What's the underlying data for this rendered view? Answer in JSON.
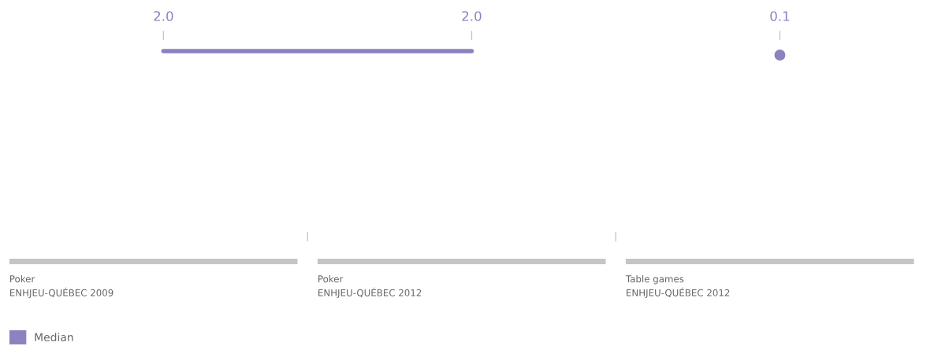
{
  "chart_data": {
    "type": "other",
    "categories": [
      "Poker\nENHJEU-QUÉBEC 2009",
      "Poker\nENHJEU-QUÉBEC 2012",
      "Table games\nENHJEU-QUÉBEC 2012"
    ],
    "series": [
      {
        "name": "Median",
        "color": "#8b83c0",
        "values": [
          2.0,
          2.0,
          0.1
        ],
        "value_labels": [
          "2.0",
          "2.0",
          "0.1"
        ]
      }
    ],
    "legend": "bottom left"
  }
}
